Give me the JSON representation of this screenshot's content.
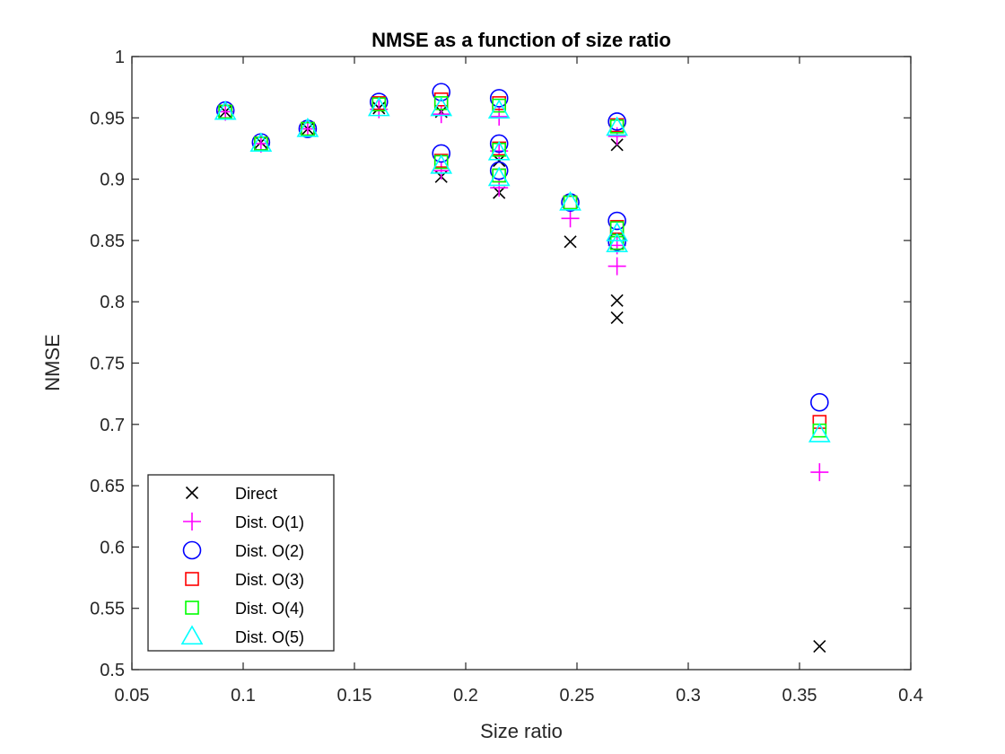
{
  "chart_data": {
    "type": "scatter",
    "title": "NMSE as a function of size ratio",
    "xlabel": "Size ratio",
    "ylabel": "NMSE",
    "xlim": [
      0.05,
      0.4
    ],
    "ylim": [
      0.5,
      1
    ],
    "xticks": [
      0.05,
      0.1,
      0.15,
      0.2,
      0.25,
      0.3,
      0.35,
      0.4
    ],
    "xtick_labels": [
      "0.05",
      "0.1",
      "0.15",
      "0.2",
      "0.25",
      "0.3",
      "0.35",
      "0.4"
    ],
    "yticks": [
      0.5,
      0.55,
      0.6,
      0.65,
      0.7,
      0.75,
      0.8,
      0.85,
      0.9,
      0.95,
      1
    ],
    "ytick_labels": [
      "0.5",
      "0.55",
      "0.6",
      "0.65",
      "0.7",
      "0.75",
      "0.8",
      "0.85",
      "0.9",
      "0.95",
      "1"
    ],
    "grid": false,
    "legend_position": "bottom-left",
    "series": [
      {
        "name": "Direct",
        "marker": "x",
        "color": "#000000",
        "x": [
          0.092,
          0.108,
          0.129,
          0.161,
          0.189,
          0.189,
          0.215,
          0.215,
          0.247,
          0.268,
          0.268,
          0.268,
          0.359
        ],
        "y": [
          0.955,
          0.93,
          0.941,
          0.958,
          0.955,
          0.902,
          0.915,
          0.889,
          0.849,
          0.928,
          0.801,
          0.787,
          0.519
        ]
      },
      {
        "name": "Dist. O(1)",
        "marker": "+",
        "color": "#ff00ff",
        "x": [
          0.092,
          0.108,
          0.129,
          0.161,
          0.189,
          0.189,
          0.215,
          0.215,
          0.215,
          0.247,
          0.268,
          0.268,
          0.268,
          0.359
        ],
        "y": [
          0.955,
          0.929,
          0.941,
          0.957,
          0.953,
          0.907,
          0.951,
          0.923,
          0.893,
          0.868,
          0.935,
          0.846,
          0.829,
          0.661
        ]
      },
      {
        "name": "Dist. O(2)",
        "marker": "o",
        "color": "#0000ff",
        "x": [
          0.092,
          0.108,
          0.129,
          0.161,
          0.189,
          0.189,
          0.215,
          0.215,
          0.215,
          0.247,
          0.268,
          0.268,
          0.268,
          0.359
        ],
        "y": [
          0.956,
          0.93,
          0.941,
          0.963,
          0.971,
          0.921,
          0.966,
          0.929,
          0.907,
          0.881,
          0.947,
          0.866,
          0.849,
          0.718
        ]
      },
      {
        "name": "Dist. O(3)",
        "marker": "square",
        "color": "#ff0000",
        "x": [
          0.092,
          0.108,
          0.129,
          0.161,
          0.189,
          0.189,
          0.215,
          0.215,
          0.215,
          0.247,
          0.268,
          0.268,
          0.268,
          0.359
        ],
        "y": [
          0.955,
          0.929,
          0.941,
          0.962,
          0.965,
          0.915,
          0.962,
          0.925,
          0.903,
          0.881,
          0.944,
          0.861,
          0.848,
          0.702
        ]
      },
      {
        "name": "Dist. O(4)",
        "marker": "square",
        "color": "#00ff00",
        "x": [
          0.092,
          0.108,
          0.129,
          0.161,
          0.189,
          0.189,
          0.215,
          0.215,
          0.215,
          0.247,
          0.268,
          0.268,
          0.268,
          0.359
        ],
        "y": [
          0.955,
          0.929,
          0.941,
          0.961,
          0.962,
          0.914,
          0.96,
          0.924,
          0.903,
          0.881,
          0.943,
          0.86,
          0.848,
          0.695
        ]
      },
      {
        "name": "Dist. O(5)",
        "marker": "triangle",
        "color": "#00ffff",
        "x": [
          0.092,
          0.108,
          0.129,
          0.161,
          0.189,
          0.189,
          0.215,
          0.215,
          0.215,
          0.247,
          0.268,
          0.268,
          0.268,
          0.359
        ],
        "y": [
          0.955,
          0.929,
          0.941,
          0.958,
          0.958,
          0.911,
          0.956,
          0.922,
          0.901,
          0.881,
          0.942,
          0.856,
          0.847,
          0.692
        ]
      }
    ]
  }
}
